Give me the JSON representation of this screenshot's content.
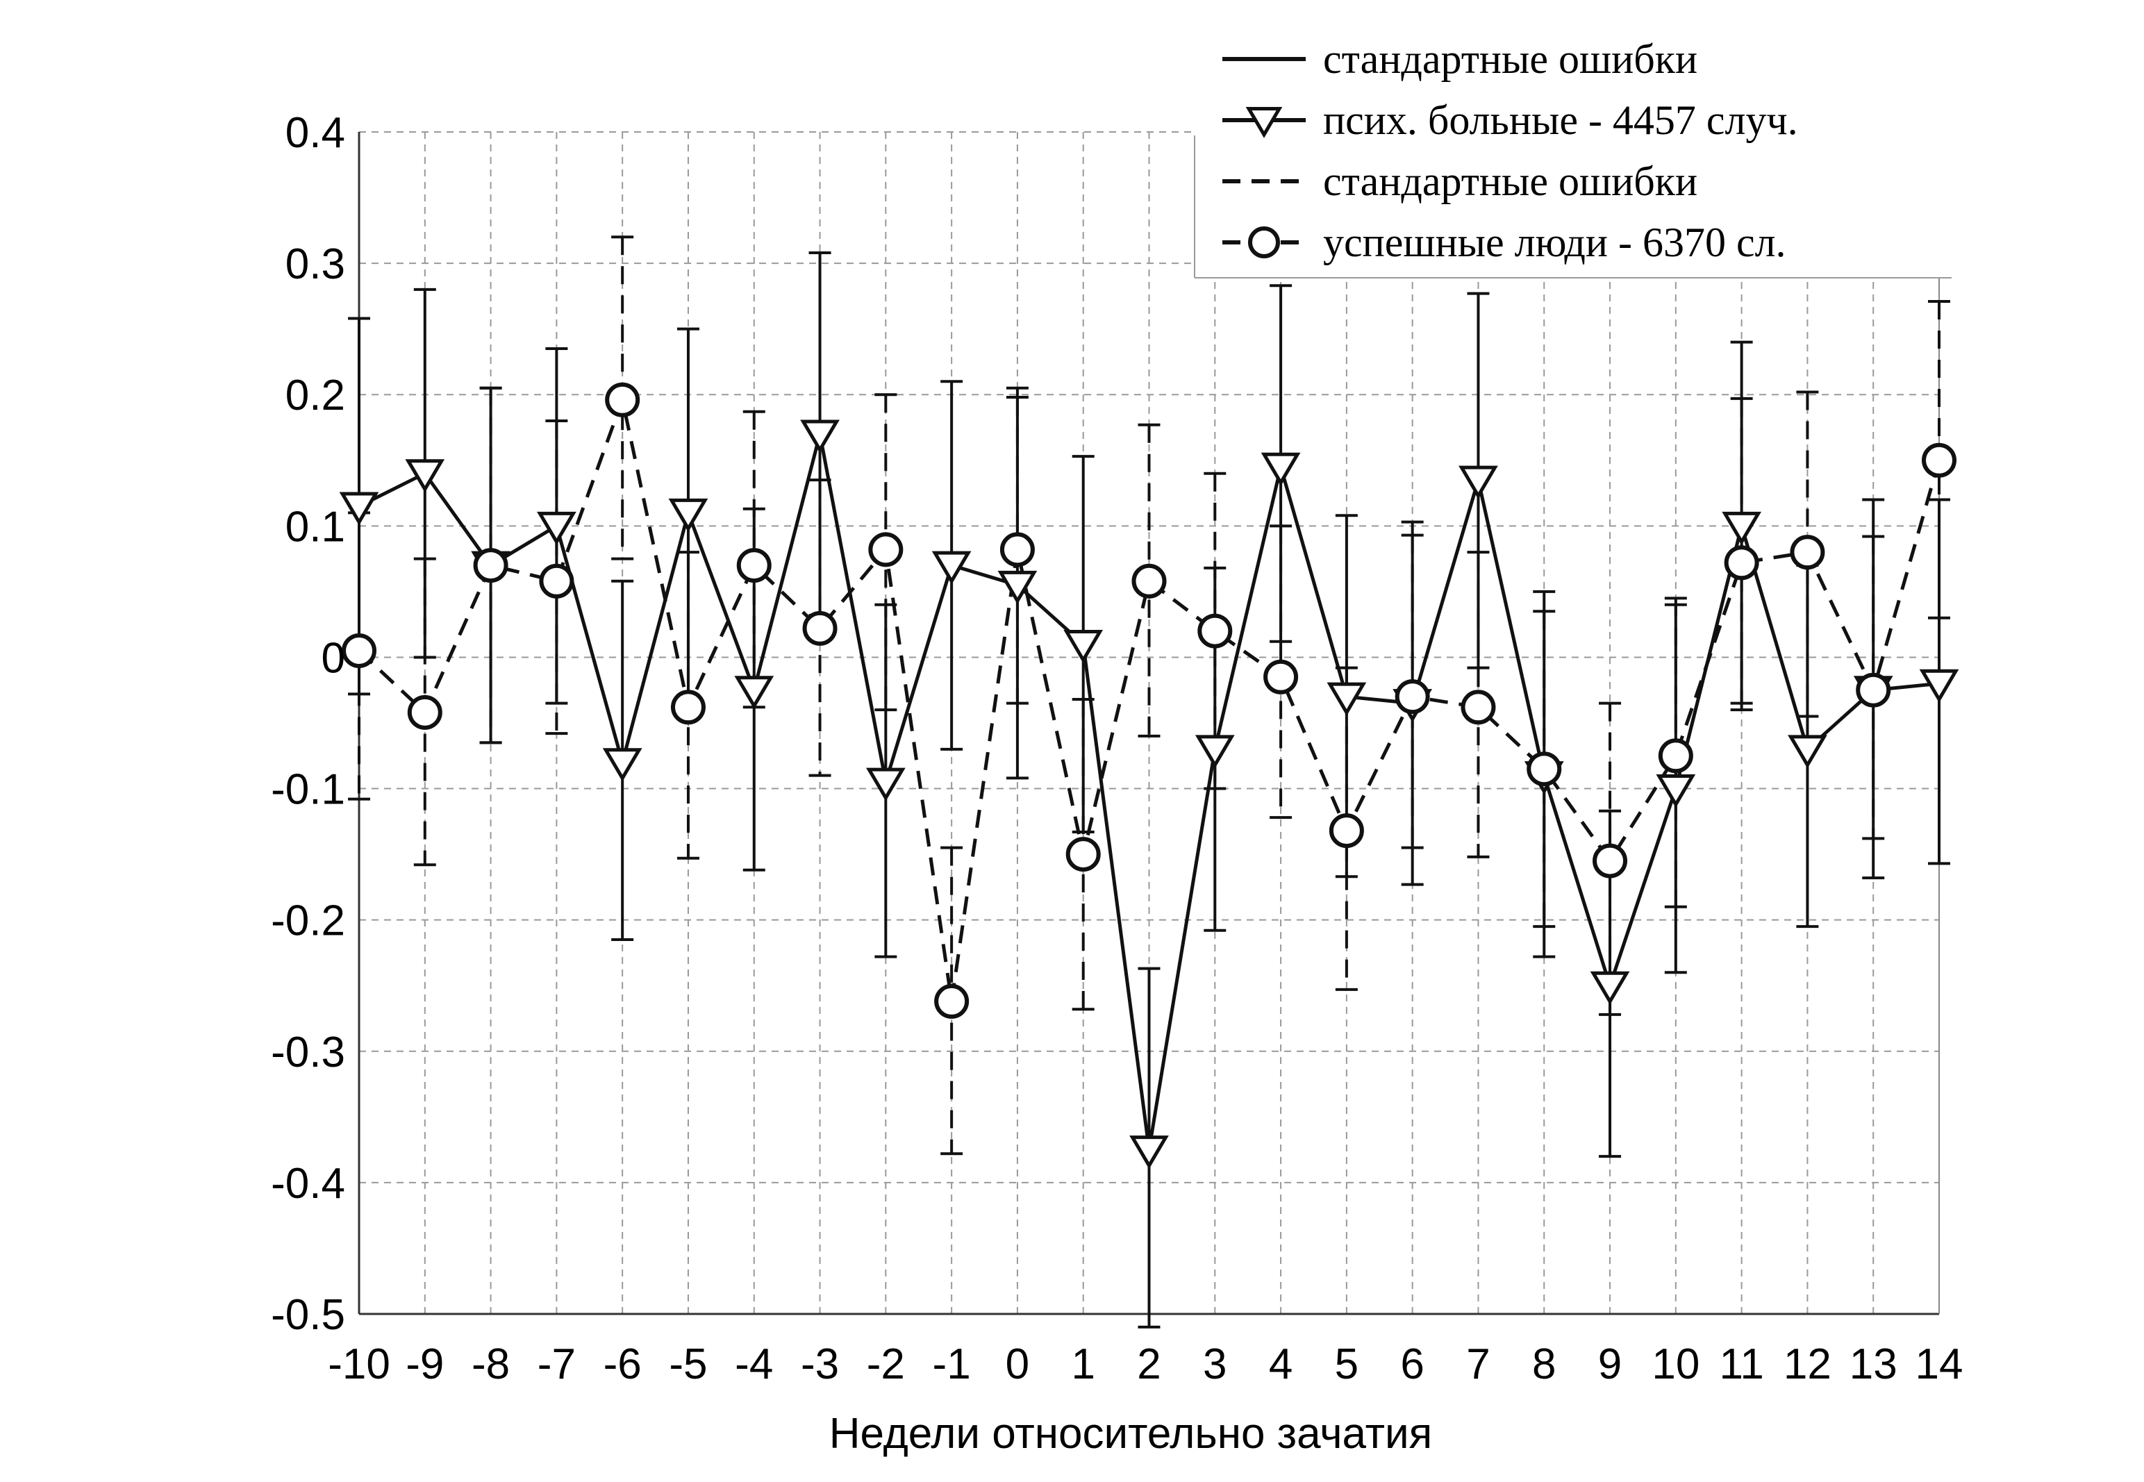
{
  "chart_data": {
    "type": "line",
    "xlabel": "Недели относительно зачатия",
    "ylabel": "",
    "x": [
      -10,
      -9,
      -8,
      -7,
      -6,
      -5,
      -4,
      -3,
      -2,
      -1,
      0,
      1,
      2,
      3,
      4,
      5,
      6,
      7,
      8,
      9,
      10,
      11,
      12,
      13,
      14
    ],
    "xlim": [
      -10,
      14
    ],
    "ylim": [
      -0.5,
      0.4
    ],
    "yticks": [
      0.4,
      0.3,
      0.2,
      0.1,
      0,
      -0.1,
      -0.2,
      -0.3,
      -0.4,
      -0.5
    ],
    "ytick_labels": [
      "0.4",
      "0.3",
      "0.2",
      "0.1",
      "0",
      "-0.1",
      "-0.2",
      "-0.3",
      "-0.4",
      "-0.5"
    ],
    "xtick_labels": [
      "-10",
      "-9",
      "-8",
      "-7",
      "-6",
      "-5",
      "-4",
      "-3",
      "-2",
      "-1",
      "0",
      "1",
      "2",
      "3",
      "4",
      "5",
      "6",
      "7",
      "8",
      "9",
      "10",
      "11",
      "12",
      "13",
      "14"
    ],
    "grid": true,
    "legend_position": "top-right",
    "legend": [
      {
        "label": "стандартные ошибки",
        "style": "solid-line"
      },
      {
        "label": "псих. больные - 4457 случ.",
        "style": "solid-triangle"
      },
      {
        "label": "стандартные ошибки",
        "style": "dashed-line"
      },
      {
        "label": "успешные люди - 6370 сл.",
        "style": "dashed-circle"
      }
    ],
    "series": [
      {
        "name": "псих. больные - 4457 случ.",
        "line_style": "solid",
        "marker": "triangle-down",
        "values": [
          0.115,
          0.14,
          0.07,
          0.1,
          -0.08,
          0.11,
          -0.025,
          0.17,
          -0.095,
          0.07,
          0.055,
          0.01,
          -0.375,
          -0.07,
          0.145,
          -0.03,
          -0.035,
          0.135,
          -0.09,
          -0.25,
          -0.1,
          0.1,
          -0.07,
          -0.025,
          -0.02
        ],
        "err_upper": [
          0.258,
          0.28,
          0.205,
          0.235,
          0.058,
          0.25,
          0.113,
          0.308,
          0.04,
          0.21,
          0.205,
          0.153,
          -0.237,
          0.068,
          0.283,
          0.108,
          0.103,
          0.277,
          0.05,
          -0.117,
          0.04,
          0.24,
          0.07,
          0.12,
          0.12
        ],
        "err_lower": [
          -0.028,
          0.0,
          -0.065,
          -0.035,
          -0.215,
          -0.03,
          -0.162,
          0.032,
          -0.228,
          -0.07,
          -0.092,
          -0.133,
          -0.51,
          -0.208,
          0.012,
          -0.167,
          -0.173,
          -0.008,
          -0.228,
          -0.38,
          -0.24,
          -0.04,
          -0.205,
          -0.168,
          -0.157
        ]
      },
      {
        "name": "успешные люди - 6370 сл.",
        "line_style": "dashed",
        "marker": "circle",
        "values": [
          0.005,
          -0.042,
          0.07,
          0.058,
          0.196,
          -0.038,
          0.07,
          0.022,
          0.082,
          -0.262,
          0.082,
          -0.15,
          0.058,
          0.02,
          -0.015,
          -0.132,
          -0.03,
          -0.038,
          -0.085,
          -0.155,
          -0.075,
          0.072,
          0.08,
          -0.025,
          0.15
        ],
        "err_upper": [
          0.11,
          0.075,
          0.205,
          0.18,
          0.32,
          0.08,
          0.187,
          0.135,
          0.2,
          -0.145,
          0.198,
          -0.032,
          0.177,
          0.14,
          0.1,
          -0.008,
          0.093,
          0.08,
          0.035,
          -0.035,
          0.045,
          0.197,
          0.202,
          0.092,
          0.271
        ],
        "err_lower": [
          -0.108,
          -0.158,
          -0.065,
          -0.058,
          0.075,
          -0.153,
          -0.038,
          -0.09,
          -0.04,
          -0.378,
          -0.035,
          -0.268,
          -0.06,
          -0.1,
          -0.122,
          -0.253,
          -0.145,
          -0.152,
          -0.205,
          -0.272,
          -0.19,
          -0.035,
          -0.045,
          -0.138,
          0.03
        ]
      }
    ]
  }
}
